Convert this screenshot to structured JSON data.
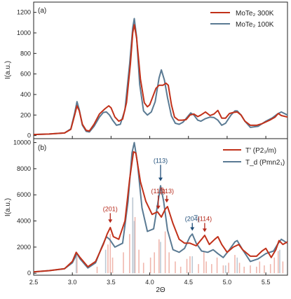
{
  "chart_data": [
    {
      "type": "line",
      "panel_label": "(a)",
      "ylabel": "I(a.u.)",
      "ylim": [
        -30,
        1300
      ],
      "yticks": [
        0,
        200,
        400,
        600,
        800,
        1000,
        1200
      ],
      "xlim": [
        2.5,
        5.78
      ],
      "legend_position": "top-right",
      "series": [
        {
          "name": "MoTe₂ 300K",
          "color": "#c1311a",
          "points": [
            [
              2.5,
              10
            ],
            [
              2.7,
              15
            ],
            [
              2.9,
              25
            ],
            [
              2.98,
              60
            ],
            [
              3.03,
              200
            ],
            [
              3.06,
              290
            ],
            [
              3.09,
              240
            ],
            [
              3.13,
              110
            ],
            [
              3.18,
              50
            ],
            [
              3.22,
              45
            ],
            [
              3.28,
              110
            ],
            [
              3.35,
              210
            ],
            [
              3.42,
              260
            ],
            [
              3.47,
              290
            ],
            [
              3.5,
              270
            ],
            [
              3.55,
              180
            ],
            [
              3.6,
              140
            ],
            [
              3.65,
              160
            ],
            [
              3.7,
              320
            ],
            [
              3.75,
              700
            ],
            [
              3.78,
              1000
            ],
            [
              3.8,
              1080
            ],
            [
              3.83,
              950
            ],
            [
              3.88,
              550
            ],
            [
              3.93,
              320
            ],
            [
              3.97,
              280
            ],
            [
              4.0,
              300
            ],
            [
              4.04,
              380
            ],
            [
              4.08,
              460
            ],
            [
              4.12,
              490
            ],
            [
              4.17,
              490
            ],
            [
              4.21,
              510
            ],
            [
              4.24,
              490
            ],
            [
              4.28,
              300
            ],
            [
              4.32,
              180
            ],
            [
              4.37,
              150
            ],
            [
              4.42,
              150
            ],
            [
              4.47,
              155
            ],
            [
              4.52,
              200
            ],
            [
              4.57,
              210
            ],
            [
              4.62,
              185
            ],
            [
              4.66,
              200
            ],
            [
              4.72,
              230
            ],
            [
              4.78,
              195
            ],
            [
              4.83,
              210
            ],
            [
              4.88,
              245
            ],
            [
              4.93,
              170
            ],
            [
              4.98,
              170
            ],
            [
              5.03,
              215
            ],
            [
              5.08,
              225
            ],
            [
              5.13,
              230
            ],
            [
              5.18,
              200
            ],
            [
              5.23,
              140
            ],
            [
              5.3,
              100
            ],
            [
              5.38,
              100
            ],
            [
              5.45,
              115
            ],
            [
              5.55,
              150
            ],
            [
              5.62,
              180
            ],
            [
              5.66,
              215
            ],
            [
              5.7,
              195
            ],
            [
              5.78,
              180
            ]
          ]
        },
        {
          "name": "MoTe₂ 100K",
          "color": "#5a7a93",
          "points": [
            [
              2.5,
              10
            ],
            [
              2.7,
              15
            ],
            [
              2.9,
              25
            ],
            [
              2.98,
              65
            ],
            [
              3.03,
              220
            ],
            [
              3.06,
              330
            ],
            [
              3.09,
              250
            ],
            [
              3.13,
              100
            ],
            [
              3.18,
              40
            ],
            [
              3.22,
              35
            ],
            [
              3.28,
              90
            ],
            [
              3.35,
              180
            ],
            [
              3.4,
              225
            ],
            [
              3.44,
              230
            ],
            [
              3.48,
              200
            ],
            [
              3.52,
              150
            ],
            [
              3.57,
              100
            ],
            [
              3.62,
              110
            ],
            [
              3.68,
              250
            ],
            [
              3.74,
              700
            ],
            [
              3.78,
              1050
            ],
            [
              3.8,
              1140
            ],
            [
              3.83,
              960
            ],
            [
              3.87,
              500
            ],
            [
              3.92,
              240
            ],
            [
              3.97,
              200
            ],
            [
              4.02,
              230
            ],
            [
              4.07,
              330
            ],
            [
              4.12,
              560
            ],
            [
              4.15,
              640
            ],
            [
              4.19,
              540
            ],
            [
              4.23,
              370
            ],
            [
              4.28,
              190
            ],
            [
              4.33,
              120
            ],
            [
              4.38,
              110
            ],
            [
              4.43,
              130
            ],
            [
              4.48,
              175
            ],
            [
              4.53,
              220
            ],
            [
              4.57,
              200
            ],
            [
              4.62,
              150
            ],
            [
              4.66,
              140
            ],
            [
              4.72,
              165
            ],
            [
              4.78,
              180
            ],
            [
              4.83,
              175
            ],
            [
              4.88,
              150
            ],
            [
              4.93,
              100
            ],
            [
              4.98,
              120
            ],
            [
              5.05,
              200
            ],
            [
              5.1,
              240
            ],
            [
              5.13,
              240
            ],
            [
              5.18,
              200
            ],
            [
              5.23,
              140
            ],
            [
              5.3,
              80
            ],
            [
              5.4,
              90
            ],
            [
              5.5,
              140
            ],
            [
              5.58,
              170
            ],
            [
              5.65,
              210
            ],
            [
              5.7,
              230
            ],
            [
              5.78,
              200
            ]
          ]
        }
      ]
    },
    {
      "type": "line",
      "panel_label": "(b)",
      "xlabel": "2Θ",
      "ylabel": "I(a.u.)",
      "ylim": [
        -150,
        10300
      ],
      "yticks": [
        0,
        2000,
        4000,
        6000,
        8000,
        10000
      ],
      "xlim": [
        2.5,
        5.78
      ],
      "xticks": [
        "2.5",
        "3.0",
        "3.5",
        "4.0",
        "4.5",
        "5.0",
        "5.5"
      ],
      "legend_position": "top-right",
      "series": [
        {
          "name": "T′ (P2₁/m)",
          "color": "#c1311a",
          "points": [
            [
              2.5,
              100
            ],
            [
              2.7,
              200
            ],
            [
              2.9,
              350
            ],
            [
              3.0,
              900
            ],
            [
              3.05,
              1600
            ],
            [
              3.1,
              1200
            ],
            [
              3.2,
              500
            ],
            [
              3.3,
              900
            ],
            [
              3.4,
              2200
            ],
            [
              3.45,
              3000
            ],
            [
              3.49,
              3500
            ],
            [
              3.53,
              2800
            ],
            [
              3.6,
              2600
            ],
            [
              3.68,
              4000
            ],
            [
              3.74,
              7200
            ],
            [
              3.79,
              9300
            ],
            [
              3.82,
              9200
            ],
            [
              3.88,
              7000
            ],
            [
              3.95,
              5500
            ],
            [
              4.03,
              4500
            ],
            [
              4.1,
              4700
            ],
            [
              4.15,
              4300
            ],
            [
              4.2,
              4900
            ],
            [
              4.23,
              5100
            ],
            [
              4.3,
              3800
            ],
            [
              4.38,
              2600
            ],
            [
              4.45,
              2300
            ],
            [
              4.52,
              2300
            ],
            [
              4.6,
              2100
            ],
            [
              4.67,
              2600
            ],
            [
              4.71,
              2900
            ],
            [
              4.77,
              2200
            ],
            [
              4.84,
              2600
            ],
            [
              4.88,
              2800
            ],
            [
              4.93,
              2200
            ],
            [
              5.0,
              1600
            ],
            [
              5.08,
              2000
            ],
            [
              5.15,
              2200
            ],
            [
              5.2,
              1800
            ],
            [
              5.3,
              1300
            ],
            [
              5.38,
              1300
            ],
            [
              5.45,
              1700
            ],
            [
              5.5,
              1900
            ],
            [
              5.57,
              1200
            ],
            [
              5.63,
              1800
            ],
            [
              5.67,
              2500
            ],
            [
              5.72,
              2200
            ],
            [
              5.78,
              2400
            ]
          ]
        },
        {
          "name": "T_d (Pmn2₁)",
          "color": "#5a7a93",
          "points": [
            [
              2.5,
              100
            ],
            [
              2.7,
              200
            ],
            [
              2.9,
              350
            ],
            [
              3.0,
              800
            ],
            [
              3.06,
              1500
            ],
            [
              3.1,
              1100
            ],
            [
              3.2,
              400
            ],
            [
              3.3,
              800
            ],
            [
              3.38,
              2000
            ],
            [
              3.44,
              2800
            ],
            [
              3.48,
              2600
            ],
            [
              3.55,
              2000
            ],
            [
              3.65,
              2300
            ],
            [
              3.72,
              5500
            ],
            [
              3.77,
              9200
            ],
            [
              3.8,
              10000
            ],
            [
              3.84,
              8500
            ],
            [
              3.9,
              5000
            ],
            [
              3.97,
              3200
            ],
            [
              4.05,
              3400
            ],
            [
              4.1,
              5200
            ],
            [
              4.14,
              6700
            ],
            [
              4.18,
              5500
            ],
            [
              4.23,
              3300
            ],
            [
              4.3,
              1800
            ],
            [
              4.38,
              1600
            ],
            [
              4.45,
              1900
            ],
            [
              4.52,
              2800
            ],
            [
              4.55,
              3000
            ],
            [
              4.6,
              2300
            ],
            [
              4.67,
              1700
            ],
            [
              4.75,
              1600
            ],
            [
              4.82,
              1800
            ],
            [
              4.88,
              1500
            ],
            [
              4.95,
              1200
            ],
            [
              5.03,
              1800
            ],
            [
              5.1,
              2400
            ],
            [
              5.13,
              2500
            ],
            [
              5.2,
              1800
            ],
            [
              5.3,
              900
            ],
            [
              5.4,
              1100
            ],
            [
              5.5,
              1500
            ],
            [
              5.6,
              1700
            ],
            [
              5.65,
              2200
            ],
            [
              5.7,
              2600
            ],
            [
              5.78,
              2300
            ]
          ]
        }
      ],
      "reflections": {
        "red": [
          [
            3.06,
            1300
          ],
          [
            3.32,
            500
          ],
          [
            3.46,
            2200
          ],
          [
            3.49,
            3000
          ],
          [
            3.52,
            1200
          ],
          [
            3.66,
            1600
          ],
          [
            3.74,
            3000
          ],
          [
            3.78,
            5600
          ],
          [
            3.81,
            4300
          ],
          [
            3.86,
            1800
          ],
          [
            3.92,
            800
          ],
          [
            4.01,
            1200
          ],
          [
            4.06,
            1600
          ],
          [
            4.12,
            2600
          ],
          [
            4.2,
            3200
          ],
          [
            4.25,
            1600
          ],
          [
            4.33,
            900
          ],
          [
            4.4,
            500
          ],
          [
            4.48,
            1100
          ],
          [
            4.52,
            1300
          ],
          [
            4.63,
            700
          ],
          [
            4.7,
            1700
          ],
          [
            4.73,
            900
          ],
          [
            4.8,
            700
          ],
          [
            4.87,
            1200
          ],
          [
            4.95,
            600
          ],
          [
            5.02,
            800
          ],
          [
            5.1,
            1400
          ],
          [
            5.16,
            800
          ],
          [
            5.22,
            500
          ],
          [
            5.3,
            600
          ],
          [
            5.38,
            500
          ],
          [
            5.42,
            900
          ],
          [
            5.48,
            600
          ],
          [
            5.56,
            700
          ],
          [
            5.61,
            1200
          ],
          [
            5.66,
            1700
          ],
          [
            5.72,
            900
          ]
        ],
        "blue": [
          [
            3.05,
            1300
          ],
          [
            3.43,
            1800
          ],
          [
            3.78,
            5800
          ],
          [
            3.8,
            4000
          ],
          [
            4.14,
            2400
          ],
          [
            4.55,
            1300
          ],
          [
            4.98,
            600
          ],
          [
            5.13,
            1200
          ],
          [
            5.68,
            1800
          ]
        ]
      },
      "annotations": [
        {
          "text": "(201)",
          "x": 3.49,
          "arrow_top": 4600,
          "arrow_bottom": 3850,
          "color": "red"
        },
        {
          "text": "(113)",
          "x": 4.14,
          "arrow_top": 8300,
          "arrow_bottom": 7050,
          "color": "blue"
        },
        {
          "text": "(11",
          "bar": "3",
          "close": ")",
          "x": 4.11,
          "arrow_top": 5950,
          "arrow_bottom": 4900,
          "color": "red"
        },
        {
          "text": "(113)",
          "x": 4.22,
          "arrow_top": 5950,
          "arrow_bottom": 5400,
          "color": "red"
        },
        {
          "text": "(20",
          "bar": "4",
          "close": ")",
          "x": 4.55,
          "arrow_top": 3850,
          "arrow_bottom": 3250,
          "color": "blue"
        },
        {
          "text": "(114)",
          "x": 4.71,
          "arrow_top": 3850,
          "arrow_bottom": 3150,
          "color": "red"
        }
      ]
    }
  ]
}
